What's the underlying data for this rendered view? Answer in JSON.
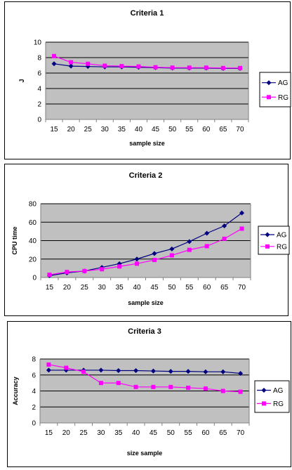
{
  "chart_data": [
    {
      "type": "line",
      "title": "Criteria 1",
      "xlabel": "sample size",
      "ylabel": "J",
      "categories": [
        "15",
        "20",
        "25",
        "30",
        "35",
        "40",
        "45",
        "50",
        "55",
        "60",
        "65",
        "70"
      ],
      "ylim": [
        0,
        10
      ],
      "yticks": [
        0,
        2,
        4,
        6,
        8,
        10
      ],
      "grid": true,
      "legend_position": "right",
      "series": [
        {
          "name": "AG",
          "color": "#000080",
          "marker": "diamond",
          "values": [
            7.2,
            6.9,
            6.85,
            6.8,
            6.8,
            6.75,
            6.7,
            6.65,
            6.65,
            6.65,
            6.6,
            6.6
          ]
        },
        {
          "name": "RG",
          "color": "#ff00ff",
          "marker": "square",
          "values": [
            8.2,
            7.4,
            7.2,
            6.95,
            6.9,
            6.85,
            6.75,
            6.7,
            6.7,
            6.7,
            6.65,
            6.65
          ]
        }
      ]
    },
    {
      "type": "line",
      "title": "Criteria 2",
      "xlabel": "sample size",
      "ylabel": "CPU time",
      "categories": [
        "15",
        "20",
        "25",
        "30",
        "35",
        "40",
        "45",
        "50",
        "55",
        "60",
        "65",
        "70"
      ],
      "ylim": [
        0,
        80
      ],
      "yticks": [
        0,
        20,
        40,
        60,
        80
      ],
      "grid": true,
      "legend_position": "right",
      "series": [
        {
          "name": "AG",
          "color": "#000080",
          "marker": "diamond",
          "values": [
            2,
            5,
            7,
            11,
            15,
            20,
            26,
            31,
            39,
            48,
            56,
            70
          ]
        },
        {
          "name": "RG",
          "color": "#ff00ff",
          "marker": "square",
          "values": [
            3,
            6,
            7,
            9,
            12,
            15,
            19,
            24,
            30,
            34,
            42,
            53
          ]
        }
      ]
    },
    {
      "type": "line",
      "title": "Criteria 3",
      "xlabel": "size sample",
      "ylabel": "Accuracy",
      "categories": [
        "15",
        "20",
        "25",
        "30",
        "35",
        "40",
        "45",
        "50",
        "55",
        "60",
        "65",
        "70"
      ],
      "ylim": [
        0,
        8
      ],
      "yticks": [
        0,
        2,
        4,
        6,
        8
      ],
      "grid": true,
      "legend_position": "right",
      "series": [
        {
          "name": "AG",
          "color": "#000080",
          "marker": "diamond",
          "values": [
            6.6,
            6.6,
            6.6,
            6.6,
            6.55,
            6.55,
            6.5,
            6.45,
            6.45,
            6.4,
            6.4,
            6.2
          ]
        },
        {
          "name": "RG",
          "color": "#ff00ff",
          "marker": "square",
          "values": [
            7.3,
            6.9,
            6.4,
            5.0,
            5.0,
            4.5,
            4.5,
            4.5,
            4.4,
            4.3,
            4.0,
            3.9
          ]
        }
      ]
    }
  ]
}
